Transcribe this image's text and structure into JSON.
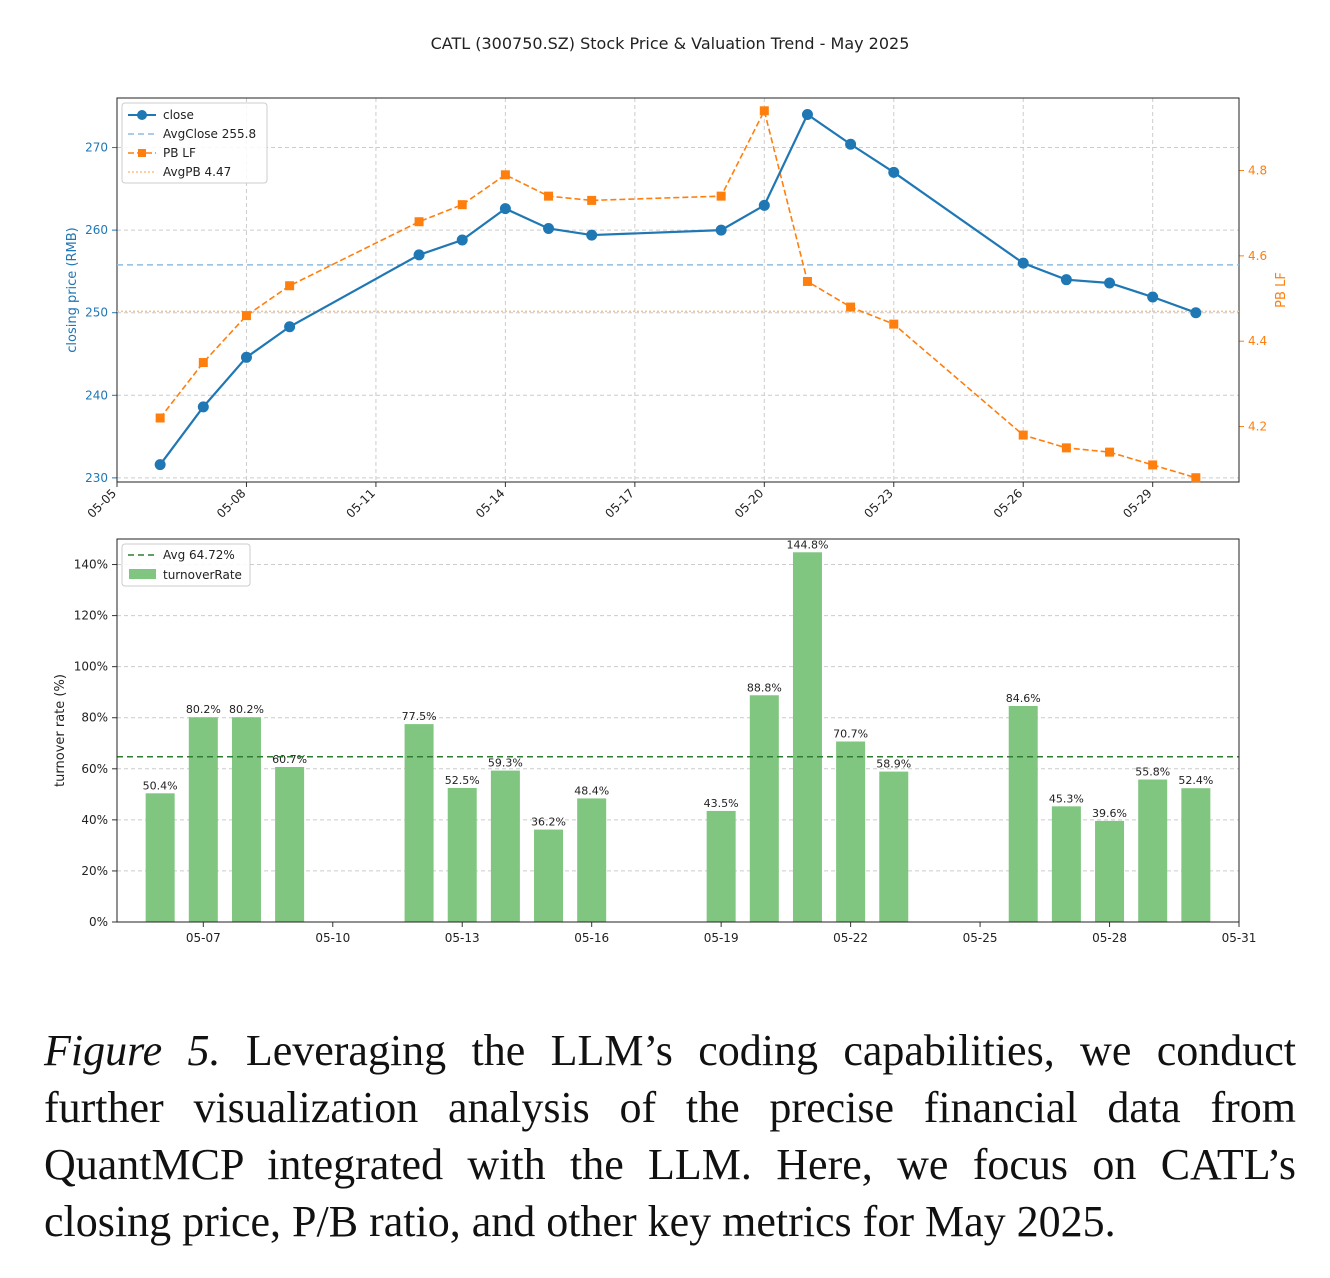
{
  "figure_title": "CATL (300750.SZ) Stock Price & Valuation Trend - May 2025",
  "caption": {
    "lead": "Figure 5.",
    "text": " Leveraging the LLM’s coding capabilities, we conduct further visualization analysis of the precise financial data from QuantMCP integrated with the LLM. Here, we focus on CATL’s closing price, P/B ratio, and other key metrics for May 2025."
  },
  "colors": {
    "close": "#1f77b4",
    "pb": "#ff7f0e",
    "avg_close_line": "#8fbce0",
    "avg_pb_line": "#ffbf80",
    "turnover_bar": "#80c680",
    "avg_turnover_line": "#2e7d32",
    "grid": "#cccccc"
  },
  "chart_data": [
    {
      "type": "line",
      "ylabel": "closing price (RMB)",
      "y2label": "PB LF",
      "xlim": [
        "05-05",
        "05-31"
      ],
      "ylim": [
        229.5,
        276
      ],
      "y2lim": [
        4.07,
        4.97
      ],
      "x_ticks": [
        "05-05",
        "05-08",
        "05-11",
        "05-14",
        "05-17",
        "05-20",
        "05-23",
        "05-26",
        "05-29"
      ],
      "y_ticks": [
        230,
        240,
        250,
        260,
        270
      ],
      "y2_ticks": [
        4.2,
        4.4,
        4.6,
        4.8
      ],
      "grid": true,
      "legend_position": "top-left",
      "x": [
        "05-06",
        "05-07",
        "05-08",
        "05-09",
        "05-12",
        "05-13",
        "05-14",
        "05-15",
        "05-16",
        "05-19",
        "05-20",
        "05-21",
        "05-22",
        "05-23",
        "05-26",
        "05-27",
        "05-28",
        "05-29",
        "05-30"
      ],
      "series": [
        {
          "name": "close",
          "axis": "left",
          "values": [
            231.6,
            238.6,
            244.6,
            248.3,
            257.0,
            258.8,
            262.6,
            260.2,
            259.4,
            260.0,
            263.0,
            274.0,
            270.4,
            267.0,
            256.0,
            254.0,
            253.6,
            251.9,
            250.0
          ]
        },
        {
          "name": "PB LF",
          "axis": "right",
          "values": [
            4.22,
            4.35,
            4.46,
            4.53,
            4.68,
            4.72,
            4.79,
            4.74,
            4.73,
            4.74,
            4.94,
            4.54,
            4.48,
            4.44,
            4.18,
            4.15,
            4.14,
            4.11,
            4.08
          ]
        }
      ],
      "reference_lines": [
        {
          "name": "AvgClose 255.8",
          "axis": "left",
          "value": 255.8
        },
        {
          "name": "AvgPB 4.47",
          "axis": "right",
          "value": 4.47
        }
      ]
    },
    {
      "type": "bar",
      "ylabel": "turnover rate (%)",
      "xlim": [
        "05-05",
        "05-31"
      ],
      "ylim": [
        0,
        150
      ],
      "x_ticks": [
        "05-07",
        "05-10",
        "05-13",
        "05-16",
        "05-19",
        "05-22",
        "05-25",
        "05-28",
        "05-31"
      ],
      "y_ticks": [
        "0%",
        "20%",
        "40%",
        "60%",
        "80%",
        "100%",
        "120%",
        "140%"
      ],
      "grid": true,
      "legend_position": "top-left",
      "x": [
        "05-06",
        "05-07",
        "05-08",
        "05-09",
        "05-12",
        "05-13",
        "05-14",
        "05-15",
        "05-16",
        "05-19",
        "05-20",
        "05-21",
        "05-22",
        "05-23",
        "05-26",
        "05-27",
        "05-28",
        "05-29",
        "05-30"
      ],
      "series": [
        {
          "name": "turnoverRate",
          "values": [
            50.4,
            80.2,
            80.2,
            60.7,
            77.5,
            52.5,
            59.3,
            36.2,
            48.4,
            43.5,
            88.8,
            144.8,
            70.7,
            58.9,
            84.6,
            45.3,
            39.6,
            55.8,
            52.4
          ]
        }
      ],
      "data_labels": [
        "50.4%",
        "80.2%",
        "80.2%",
        "60.7%",
        "77.5%",
        "52.5%",
        "59.3%",
        "36.2%",
        "48.4%",
        "43.5%",
        "88.8%",
        "144.8%",
        "70.7%",
        "58.9%",
        "84.6%",
        "45.3%",
        "39.6%",
        "55.8%",
        "52.4%"
      ],
      "reference_lines": [
        {
          "name": "Avg 64.72%",
          "value": 64.72
        }
      ]
    }
  ]
}
